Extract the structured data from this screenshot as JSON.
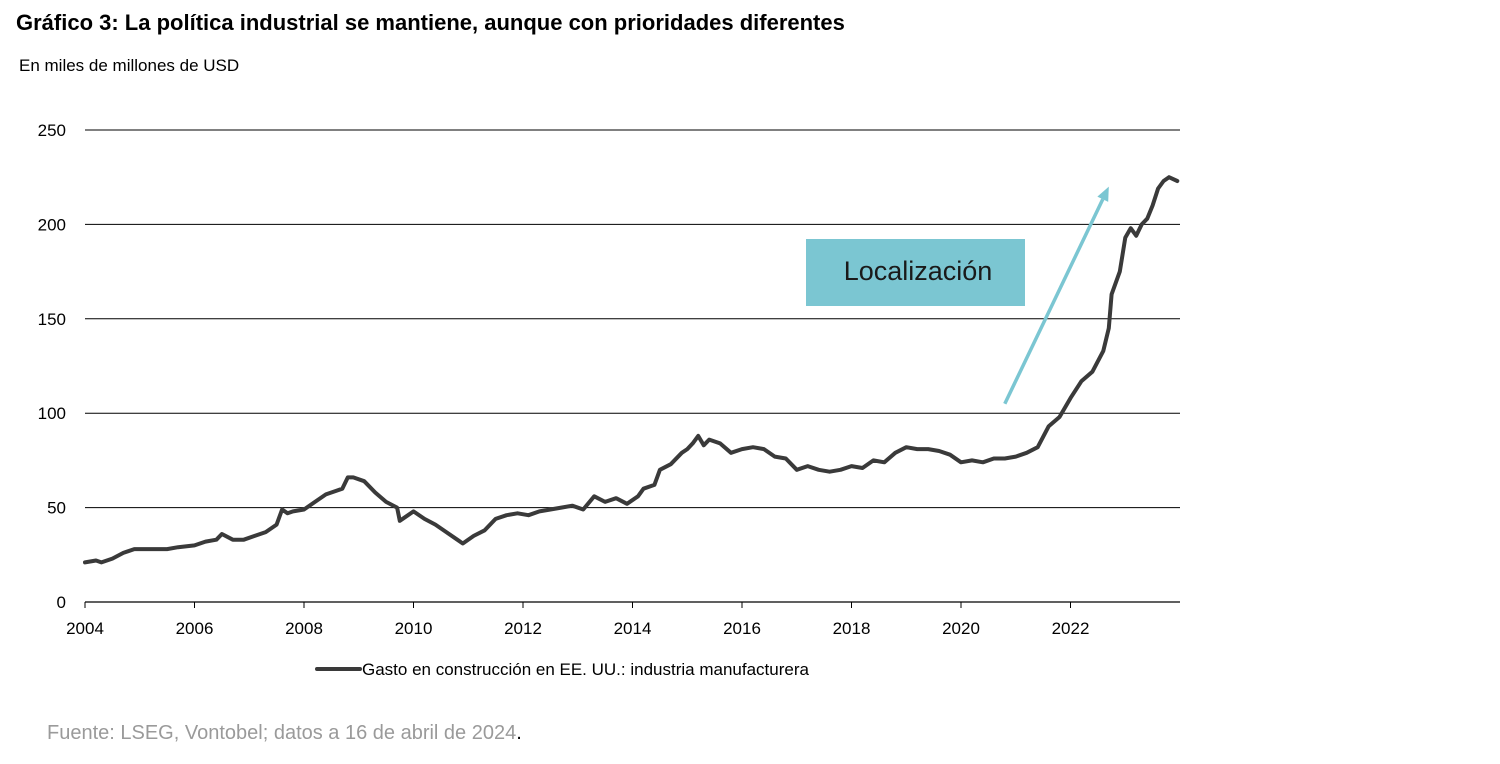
{
  "title": "Gráfico 3: La política industrial se mantiene, aunque con prioridades diferentes",
  "subtitle": "En miles de millones de USD",
  "source": "Fuente: LSEG, Vontobel; datos a 16 de abril de 2024",
  "source_end": ".",
  "colors": {
    "series": "#3a3a3a",
    "annotation_box": "#7bc6d2",
    "arrow": "#7bc6d2",
    "grid": "#000000"
  },
  "chart_data": {
    "type": "line",
    "xlim": [
      2004.0,
      2024.0
    ],
    "ylim": [
      0,
      250
    ],
    "x_ticks": [
      "2004",
      "2006",
      "2008",
      "2010",
      "2012",
      "2014",
      "2016",
      "2018",
      "2020",
      "2022"
    ],
    "y_ticks": [
      "0",
      "50",
      "100",
      "150",
      "200",
      "250"
    ],
    "grid": true,
    "legend_position": "bottom",
    "annotation": {
      "label": "Localización",
      "arrow_from": [
        2020.8,
        105
      ],
      "arrow_to": [
        2022.7,
        220
      ]
    },
    "series": [
      {
        "name": "Gasto en construcción en EE. UU.: industria manufacturera",
        "points": [
          [
            2004.0,
            21
          ],
          [
            2004.2,
            22
          ],
          [
            2004.3,
            21
          ],
          [
            2004.5,
            23
          ],
          [
            2004.7,
            26
          ],
          [
            2004.9,
            28
          ],
          [
            2005.1,
            28
          ],
          [
            2005.3,
            28
          ],
          [
            2005.5,
            28
          ],
          [
            2005.7,
            29
          ],
          [
            2006.0,
            30
          ],
          [
            2006.2,
            32
          ],
          [
            2006.4,
            33
          ],
          [
            2006.5,
            36
          ],
          [
            2006.7,
            33
          ],
          [
            2006.9,
            33
          ],
          [
            2007.1,
            35
          ],
          [
            2007.3,
            37
          ],
          [
            2007.5,
            41
          ],
          [
            2007.6,
            49
          ],
          [
            2007.7,
            47
          ],
          [
            2007.8,
            48
          ],
          [
            2008.0,
            49
          ],
          [
            2008.2,
            53
          ],
          [
            2008.4,
            57
          ],
          [
            2008.6,
            59
          ],
          [
            2008.7,
            60
          ],
          [
            2008.8,
            66
          ],
          [
            2008.9,
            66
          ],
          [
            2009.1,
            64
          ],
          [
            2009.3,
            58
          ],
          [
            2009.5,
            53
          ],
          [
            2009.7,
            50
          ],
          [
            2009.75,
            43
          ],
          [
            2009.9,
            46
          ],
          [
            2010.0,
            48
          ],
          [
            2010.2,
            44
          ],
          [
            2010.4,
            41
          ],
          [
            2010.6,
            37
          ],
          [
            2010.8,
            33
          ],
          [
            2010.9,
            31
          ],
          [
            2011.1,
            35
          ],
          [
            2011.3,
            38
          ],
          [
            2011.5,
            44
          ],
          [
            2011.7,
            46
          ],
          [
            2011.9,
            47
          ],
          [
            2012.1,
            46
          ],
          [
            2012.3,
            48
          ],
          [
            2012.5,
            49
          ],
          [
            2012.7,
            50
          ],
          [
            2012.9,
            51
          ],
          [
            2013.1,
            49
          ],
          [
            2013.3,
            56
          ],
          [
            2013.5,
            53
          ],
          [
            2013.7,
            55
          ],
          [
            2013.9,
            52
          ],
          [
            2014.1,
            56
          ],
          [
            2014.2,
            60
          ],
          [
            2014.4,
            62
          ],
          [
            2014.5,
            70
          ],
          [
            2014.7,
            73
          ],
          [
            2014.9,
            79
          ],
          [
            2015.0,
            81
          ],
          [
            2015.1,
            84
          ],
          [
            2015.2,
            88
          ],
          [
            2015.3,
            83
          ],
          [
            2015.4,
            86
          ],
          [
            2015.6,
            84
          ],
          [
            2015.8,
            79
          ],
          [
            2016.0,
            81
          ],
          [
            2016.2,
            82
          ],
          [
            2016.4,
            81
          ],
          [
            2016.6,
            77
          ],
          [
            2016.8,
            76
          ],
          [
            2017.0,
            70
          ],
          [
            2017.2,
            72
          ],
          [
            2017.4,
            70
          ],
          [
            2017.6,
            69
          ],
          [
            2017.8,
            70
          ],
          [
            2018.0,
            72
          ],
          [
            2018.2,
            71
          ],
          [
            2018.4,
            75
          ],
          [
            2018.6,
            74
          ],
          [
            2018.8,
            79
          ],
          [
            2019.0,
            82
          ],
          [
            2019.2,
            81
          ],
          [
            2019.4,
            81
          ],
          [
            2019.6,
            80
          ],
          [
            2019.8,
            78
          ],
          [
            2020.0,
            74
          ],
          [
            2020.2,
            75
          ],
          [
            2020.4,
            74
          ],
          [
            2020.6,
            76
          ],
          [
            2020.8,
            76
          ],
          [
            2021.0,
            77
          ],
          [
            2021.2,
            79
          ],
          [
            2021.4,
            82
          ],
          [
            2021.6,
            93
          ],
          [
            2021.8,
            98
          ],
          [
            2022.0,
            108
          ],
          [
            2022.2,
            117
          ],
          [
            2022.4,
            122
          ],
          [
            2022.6,
            133
          ],
          [
            2022.7,
            145
          ],
          [
            2022.75,
            163
          ],
          [
            2022.9,
            175
          ],
          [
            2023.0,
            193
          ],
          [
            2023.1,
            198
          ],
          [
            2023.2,
            194
          ],
          [
            2023.3,
            200
          ],
          [
            2023.4,
            203
          ],
          [
            2023.5,
            210
          ],
          [
            2023.6,
            219
          ],
          [
            2023.7,
            223
          ],
          [
            2023.8,
            225
          ],
          [
            2023.95,
            223
          ]
        ]
      }
    ]
  }
}
